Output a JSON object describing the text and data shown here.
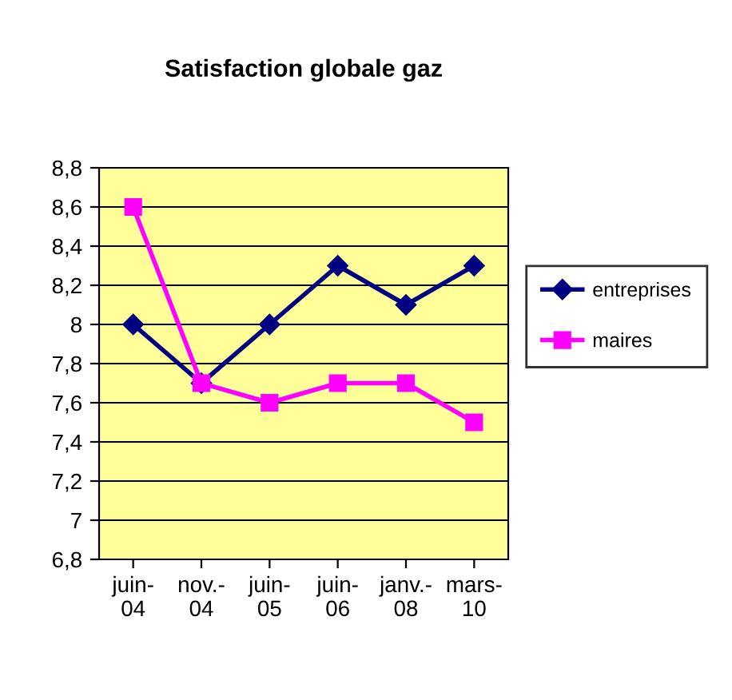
{
  "chart_data": {
    "type": "line",
    "title": "Satisfaction globale gaz",
    "categories": [
      "juin-\n04",
      "nov.-\n04",
      "juin-\n05",
      "juin-\n06",
      "janv.-\n08",
      "mars-\n10"
    ],
    "series": [
      {
        "name": "entreprises",
        "color": "#000080",
        "marker": "diamond",
        "values": [
          8,
          7.7,
          8,
          8.3,
          8.1,
          8.3
        ]
      },
      {
        "name": "maires",
        "color": "#ff00ff",
        "marker": "square",
        "values": [
          8.6,
          7.7,
          7.6,
          7.7,
          7.7,
          7.5
        ]
      }
    ],
    "ylim": [
      6.8,
      8.8
    ],
    "yticks": [
      {
        "value": 6.8,
        "label": "6,8"
      },
      7,
      {
        "value": 7.2,
        "label": "7,2"
      },
      {
        "value": 7.4,
        "label": "7,4"
      },
      {
        "value": 7.6,
        "label": "7,6"
      },
      {
        "value": 7.8,
        "label": "7,8"
      },
      8,
      {
        "value": 8.2,
        "label": "8,2"
      },
      {
        "value": 8.4,
        "label": "8,4"
      },
      {
        "value": 8.6,
        "label": "8,6"
      },
      {
        "value": 8.8,
        "label": "8,8"
      }
    ],
    "grid": "y",
    "legend": "right",
    "line_style": "solid"
  }
}
